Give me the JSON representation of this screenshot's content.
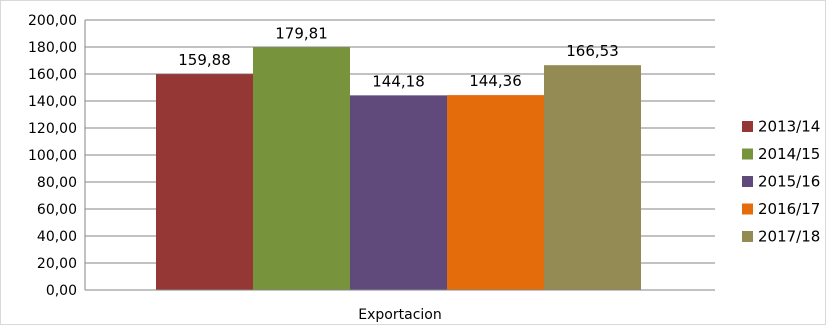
{
  "chart_data": {
    "type": "bar",
    "categories": [
      "Exportacion"
    ],
    "series": [
      {
        "name": "2013/14",
        "values": [
          159.88
        ],
        "label": "159,88",
        "color": "#953735"
      },
      {
        "name": "2014/15",
        "values": [
          179.81
        ],
        "label": "179,81",
        "color": "#77933C"
      },
      {
        "name": "2015/16",
        "values": [
          144.18
        ],
        "label": "144,18",
        "color": "#604A7B"
      },
      {
        "name": "2016/17",
        "values": [
          144.36
        ],
        "label": "144,36",
        "color": "#E46C0A"
      },
      {
        "name": "2017/18",
        "values": [
          166.53
        ],
        "label": "166,53",
        "color": "#948A54"
      }
    ],
    "ylim": [
      0,
      200
    ],
    "ytick_step": 20,
    "ytick_labels": [
      "0,00",
      "20,00",
      "40,00",
      "60,00",
      "80,00",
      "100,00",
      "120,00",
      "140,00",
      "160,00",
      "180,00",
      "200,00"
    ],
    "grid": true,
    "legend_position": "right",
    "colors": {
      "grid": "#868686",
      "axis": "#868686"
    }
  }
}
